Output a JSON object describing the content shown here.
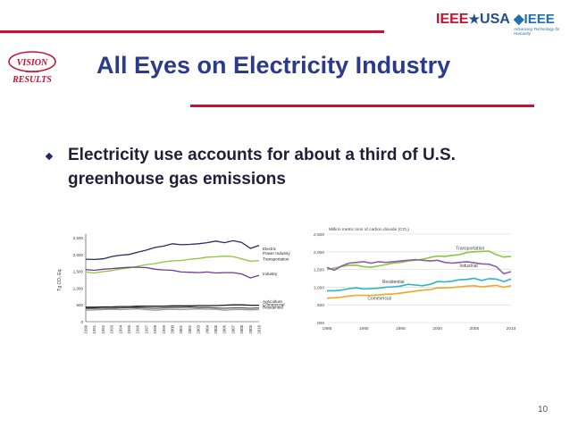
{
  "slide": {
    "title": "All Eyes on Electricity Industry",
    "bullet": "Electricity use accounts for about a third of U.S. greenhouse gas emissions",
    "page_number": "10",
    "logo_left_lines": [
      "VISION",
      "RESULTS"
    ],
    "logo_ieee_usa": [
      "IEEE",
      "★",
      "USA"
    ],
    "logo_ieee": "◆IEEE",
    "logo_ieee_tagline": "Advancing Technology for Humanity",
    "colors": {
      "title": "#2b3a8c",
      "accent_line": "#c8102e"
    }
  },
  "chart_data": [
    {
      "type": "line",
      "ylabel": "Tg CO₂ Eq.",
      "ylim": [
        0,
        2500
      ],
      "yticks": [
        "0",
        "500",
        "1,000",
        "1,500",
        "2,000",
        "2,500"
      ],
      "x": [
        1990,
        1991,
        1992,
        1993,
        1994,
        1995,
        1996,
        1997,
        1998,
        1999,
        2000,
        2001,
        2002,
        2003,
        2004,
        2005,
        2006,
        2007,
        2008,
        2009,
        2010
      ],
      "xticks": [
        "1990",
        "1991",
        "1992",
        "1993",
        "1994",
        "1995",
        "1996",
        "1997",
        "1998",
        "1999",
        "2000",
        "2001",
        "2002",
        "2003",
        "2004",
        "2005",
        "2006",
        "2007",
        "2008",
        "2009",
        "2010"
      ],
      "series": [
        {
          "name": "Electric Power Industry",
          "label_lines": [
            "Electric",
            "Power Industry"
          ],
          "color": "#2a2d5e",
          "values": [
            1860,
            1850,
            1870,
            1940,
            1980,
            2000,
            2070,
            2130,
            2210,
            2250,
            2320,
            2290,
            2300,
            2320,
            2350,
            2400,
            2350,
            2410,
            2360,
            2180,
            2270
          ]
        },
        {
          "name": "Transportation",
          "label_lines": [
            "Transportation"
          ],
          "color": "#8cc63f",
          "values": [
            1480,
            1450,
            1490,
            1520,
            1570,
            1600,
            1650,
            1700,
            1730,
            1780,
            1810,
            1820,
            1860,
            1880,
            1920,
            1930,
            1950,
            1940,
            1870,
            1800,
            1820
          ]
        },
        {
          "name": "Industry",
          "label_lines": [
            "Industry"
          ],
          "color": "#6a3d8a",
          "values": [
            1550,
            1530,
            1560,
            1580,
            1600,
            1620,
            1620,
            1610,
            1560,
            1540,
            1530,
            1480,
            1470,
            1460,
            1480,
            1450,
            1460,
            1460,
            1420,
            1300,
            1380
          ]
        },
        {
          "name": "Agriculture",
          "label_lines": [
            "Agriculture"
          ],
          "color": "#1a1a1a",
          "values": [
            430,
            430,
            440,
            440,
            450,
            450,
            460,
            460,
            460,
            460,
            470,
            470,
            470,
            480,
            480,
            480,
            490,
            500,
            500,
            490,
            490
          ]
        },
        {
          "name": "Commercial",
          "label_lines": [
            "Commercial"
          ],
          "color": "#555555",
          "values": [
            390,
            395,
            400,
            400,
            410,
            415,
            420,
            410,
            400,
            410,
            420,
            420,
            430,
            420,
            420,
            410,
            400,
            410,
            410,
            400,
            410
          ]
        },
        {
          "name": "Residential",
          "label_lines": [
            "Residential"
          ],
          "color": "#999999",
          "values": [
            340,
            350,
            360,
            370,
            360,
            370,
            380,
            360,
            340,
            360,
            370,
            360,
            370,
            380,
            370,
            370,
            340,
            360,
            360,
            350,
            360
          ]
        }
      ]
    },
    {
      "type": "line",
      "title": "Million metric tons of carbon dioxide (CO₂)",
      "ylim": [
        0,
        2500
      ],
      "yticks": [
        "000",
        "500",
        "1,000",
        "1,500",
        "2,000",
        "2,500"
      ],
      "xlim": [
        1985,
        2010
      ],
      "xticks": [
        "1985",
        "1990",
        "1995",
        "2000",
        "2005",
        "2010"
      ],
      "x": [
        1985,
        1986,
        1987,
        1988,
        1989,
        1990,
        1991,
        1992,
        1993,
        1994,
        1995,
        1996,
        1997,
        1998,
        1999,
        2000,
        2001,
        2002,
        2003,
        2004,
        2005,
        2006,
        2007,
        2008,
        2009,
        2010
      ],
      "series": [
        {
          "name": "Transportation",
          "color": "#8cc63f",
          "values": [
            1500,
            1540,
            1580,
            1620,
            1620,
            1580,
            1560,
            1600,
            1640,
            1680,
            1700,
            1740,
            1760,
            1790,
            1840,
            1880,
            1870,
            1900,
            1920,
            1980,
            2000,
            2010,
            2020,
            1920,
            1850,
            1870
          ]
        },
        {
          "name": "Industrial",
          "color": "#8e5ea2",
          "values": [
            1560,
            1480,
            1600,
            1680,
            1700,
            1720,
            1680,
            1720,
            1700,
            1720,
            1740,
            1760,
            1780,
            1760,
            1740,
            1760,
            1700,
            1680,
            1700,
            1720,
            1690,
            1660,
            1650,
            1580,
            1380,
            1440
          ]
        },
        {
          "name": "Residential",
          "color": "#29b6c5",
          "values": [
            900,
            900,
            920,
            960,
            980,
            950,
            960,
            970,
            1000,
            1010,
            1030,
            1080,
            1060,
            1040,
            1080,
            1160,
            1150,
            1170,
            1210,
            1220,
            1250,
            1190,
            1240,
            1230,
            1160,
            1230
          ]
        },
        {
          "name": "Commercial",
          "color": "#f5a623",
          "values": [
            690,
            700,
            720,
            750,
            770,
            770,
            770,
            780,
            800,
            810,
            830,
            860,
            890,
            920,
            930,
            980,
            980,
            990,
            1010,
            1030,
            1040,
            1010,
            1030,
            1050,
            1000,
            1040
          ]
        }
      ]
    }
  ]
}
